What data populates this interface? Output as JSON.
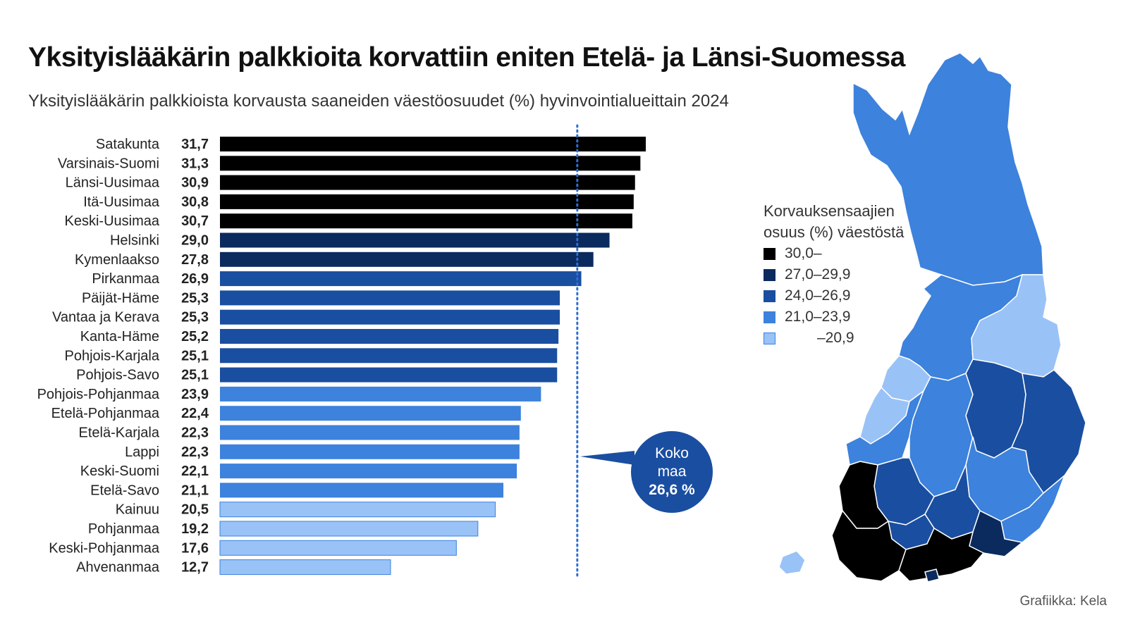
{
  "title": "Yksityislääkärin palkkioita korvattiin eniten Etelä- ja Länsi-Suomessa",
  "subtitle": "Yksityislääkärin palkkioista korvausta saaneiden väestöosuudet (%) hyvinvointialueittain 2024",
  "average": {
    "line1": "Koko",
    "line2": "maa",
    "value_label": "26,6 %",
    "value": 26.6
  },
  "legend": {
    "title": "Korvauksensaajien osuus (%) väestöstä",
    "items": [
      {
        "label": "30,0–",
        "color": "#000000"
      },
      {
        "label": "27,0–29,9",
        "color": "#0b2a5e"
      },
      {
        "label": "24,0–26,9",
        "color": "#1a4ea0"
      },
      {
        "label": "21,0–23,9",
        "color": "#3d82dc"
      },
      {
        "label": "–20,9",
        "color": "#99c2f7"
      }
    ]
  },
  "credit": "Grafiikka: Kela",
  "chart_data": {
    "type": "bar",
    "orientation": "horizontal",
    "title": "Yksityislääkärin palkkioita korvattiin eniten Etelä- ja Länsi-Suomessa",
    "xlabel": "",
    "ylabel": "",
    "xlim": [
      0,
      31.7
    ],
    "reference_line": {
      "label": "Koko maa 26,6 %",
      "value": 26.6
    },
    "categories": [
      "Satakunta",
      "Varsinais-Suomi",
      "Länsi-Uusimaa",
      "Itä-Uusimaa",
      "Keski-Uusimaa",
      "Helsinki",
      "Kymenlaakso",
      "Pirkanmaa",
      "Päijät-Häme",
      "Vantaa ja Kerava",
      "Kanta-Häme",
      "Pohjois-Karjala",
      "Pohjois-Savo",
      "Pohjois-Pohjanmaa",
      "Etelä-Pohjanmaa",
      "Etelä-Karjala",
      "Lappi",
      "Keski-Suomi",
      "Etelä-Savo",
      "Kainuu",
      "Pohjanmaa",
      "Keski-Pohjanmaa",
      "Ahvenanmaa"
    ],
    "values": [
      31.7,
      31.3,
      30.9,
      30.8,
      30.7,
      29.0,
      27.8,
      26.9,
      25.3,
      25.3,
      25.2,
      25.1,
      25.1,
      23.9,
      22.4,
      22.3,
      22.3,
      22.1,
      21.1,
      20.5,
      19.2,
      17.6,
      12.7
    ],
    "value_labels": [
      "31,7",
      "31,3",
      "30,9",
      "30,8",
      "30,7",
      "29,0",
      "27,8",
      "26,9",
      "25,3",
      "25,3",
      "25,2",
      "25,1",
      "25,1",
      "23,9",
      "22,4",
      "22,3",
      "22,3",
      "22,1",
      "21,1",
      "20,5",
      "19,2",
      "17,6",
      "12,7"
    ]
  }
}
